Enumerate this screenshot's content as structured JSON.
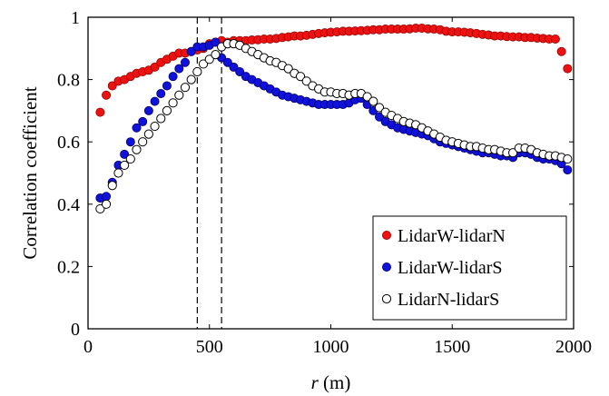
{
  "chart_data": {
    "type": "scatter",
    "title": "",
    "xlabel_var": "r",
    "xlabel_unit": " (m)",
    "ylabel": "Correlation coefficient",
    "xlim": [
      0,
      2000
    ],
    "ylim": [
      0,
      1
    ],
    "xticks": [
      0,
      500,
      1000,
      1500,
      2000
    ],
    "xtick_labels": [
      "0",
      "500",
      "1000",
      "1500",
      "2000"
    ],
    "yticks": [
      0,
      0.2,
      0.4,
      0.6,
      0.8,
      1
    ],
    "ytick_labels": [
      "0",
      "0.2",
      "0.4",
      "0.6",
      "0.8",
      "1"
    ],
    "grid": false,
    "legend_position": "bottom-right",
    "vlines": [
      450,
      550
    ],
    "series": [
      {
        "name": "LidarW-lidarN",
        "marker": "filled-circle",
        "color": "#ee1111",
        "x": [
          50,
          75,
          100,
          125,
          150,
          175,
          200,
          225,
          250,
          275,
          300,
          325,
          350,
          375,
          400,
          425,
          450,
          475,
          500,
          525,
          550,
          575,
          600,
          625,
          650,
          675,
          700,
          725,
          750,
          775,
          800,
          825,
          850,
          875,
          900,
          925,
          950,
          975,
          1000,
          1025,
          1050,
          1075,
          1100,
          1125,
          1150,
          1175,
          1200,
          1225,
          1250,
          1275,
          1300,
          1325,
          1350,
          1375,
          1400,
          1425,
          1450,
          1475,
          1500,
          1525,
          1550,
          1575,
          1600,
          1625,
          1650,
          1675,
          1700,
          1725,
          1750,
          1775,
          1800,
          1825,
          1850,
          1875,
          1900,
          1925,
          1950,
          1975
        ],
        "y": [
          0.695,
          0.75,
          0.78,
          0.795,
          0.8,
          0.81,
          0.82,
          0.825,
          0.83,
          0.84,
          0.855,
          0.865,
          0.875,
          0.885,
          0.885,
          0.89,
          0.895,
          0.9,
          0.915,
          0.92,
          0.925,
          0.92,
          0.925,
          0.925,
          0.925,
          0.927,
          0.928,
          0.93,
          0.93,
          0.932,
          0.935,
          0.937,
          0.94,
          0.94,
          0.942,
          0.945,
          0.948,
          0.95,
          0.952,
          0.953,
          0.955,
          0.955,
          0.956,
          0.957,
          0.958,
          0.96,
          0.96,
          0.962,
          0.962,
          0.962,
          0.962,
          0.963,
          0.965,
          0.965,
          0.963,
          0.962,
          0.96,
          0.955,
          0.953,
          0.953,
          0.952,
          0.95,
          0.948,
          0.945,
          0.943,
          0.94,
          0.94,
          0.938,
          0.937,
          0.937,
          0.935,
          0.935,
          0.933,
          0.932,
          0.93,
          0.93,
          0.89,
          0.835
        ]
      },
      {
        "name": "LidarW-lidarS",
        "marker": "filled-circle",
        "color": "#1111dd",
        "x": [
          50,
          75,
          100,
          125,
          150,
          175,
          200,
          225,
          250,
          275,
          300,
          325,
          350,
          375,
          400,
          425,
          450,
          475,
          500,
          525,
          550,
          575,
          600,
          625,
          650,
          675,
          700,
          725,
          750,
          775,
          800,
          825,
          850,
          875,
          900,
          925,
          950,
          975,
          1000,
          1025,
          1050,
          1075,
          1100,
          1125,
          1150,
          1175,
          1200,
          1225,
          1250,
          1275,
          1300,
          1325,
          1350,
          1375,
          1400,
          1425,
          1450,
          1475,
          1500,
          1525,
          1550,
          1575,
          1600,
          1625,
          1650,
          1675,
          1700,
          1725,
          1750,
          1775,
          1800,
          1825,
          1850,
          1875,
          1900,
          1925,
          1950,
          1975
        ],
        "y": [
          0.42,
          0.425,
          0.47,
          0.525,
          0.56,
          0.6,
          0.645,
          0.665,
          0.7,
          0.73,
          0.755,
          0.78,
          0.81,
          0.835,
          0.855,
          0.89,
          0.905,
          0.905,
          0.91,
          0.92,
          0.87,
          0.855,
          0.84,
          0.825,
          0.81,
          0.8,
          0.79,
          0.78,
          0.77,
          0.76,
          0.75,
          0.745,
          0.74,
          0.735,
          0.73,
          0.725,
          0.72,
          0.72,
          0.72,
          0.72,
          0.72,
          0.725,
          0.735,
          0.74,
          0.72,
          0.7,
          0.68,
          0.665,
          0.655,
          0.645,
          0.64,
          0.635,
          0.63,
          0.625,
          0.62,
          0.61,
          0.6,
          0.595,
          0.59,
          0.585,
          0.58,
          0.575,
          0.57,
          0.565,
          0.565,
          0.56,
          0.555,
          0.555,
          0.55,
          0.565,
          0.565,
          0.56,
          0.55,
          0.545,
          0.545,
          0.54,
          0.53,
          0.51
        ]
      },
      {
        "name": "LidarN-lidarS",
        "marker": "open-circle",
        "color": "#000000",
        "x": [
          50,
          75,
          100,
          125,
          150,
          175,
          200,
          225,
          250,
          275,
          300,
          325,
          350,
          375,
          400,
          425,
          450,
          475,
          500,
          525,
          550,
          575,
          600,
          625,
          650,
          675,
          700,
          725,
          750,
          775,
          800,
          825,
          850,
          875,
          900,
          925,
          950,
          975,
          1000,
          1025,
          1050,
          1075,
          1100,
          1125,
          1150,
          1175,
          1200,
          1225,
          1250,
          1275,
          1300,
          1325,
          1350,
          1375,
          1400,
          1425,
          1450,
          1475,
          1500,
          1525,
          1550,
          1575,
          1600,
          1625,
          1650,
          1675,
          1700,
          1725,
          1750,
          1775,
          1800,
          1825,
          1850,
          1875,
          1900,
          1925,
          1950,
          1975
        ],
        "y": [
          0.385,
          0.4,
          0.46,
          0.5,
          0.525,
          0.545,
          0.575,
          0.6,
          0.625,
          0.65,
          0.675,
          0.7,
          0.725,
          0.75,
          0.775,
          0.8,
          0.825,
          0.85,
          0.865,
          0.88,
          0.905,
          0.915,
          0.915,
          0.91,
          0.9,
          0.89,
          0.88,
          0.87,
          0.86,
          0.855,
          0.845,
          0.835,
          0.82,
          0.81,
          0.795,
          0.78,
          0.77,
          0.76,
          0.76,
          0.755,
          0.755,
          0.75,
          0.755,
          0.755,
          0.745,
          0.73,
          0.71,
          0.695,
          0.685,
          0.675,
          0.665,
          0.66,
          0.655,
          0.645,
          0.635,
          0.625,
          0.615,
          0.605,
          0.6,
          0.595,
          0.59,
          0.585,
          0.585,
          0.58,
          0.575,
          0.575,
          0.57,
          0.565,
          0.565,
          0.58,
          0.58,
          0.575,
          0.565,
          0.56,
          0.555,
          0.555,
          0.55,
          0.545
        ]
      }
    ]
  }
}
